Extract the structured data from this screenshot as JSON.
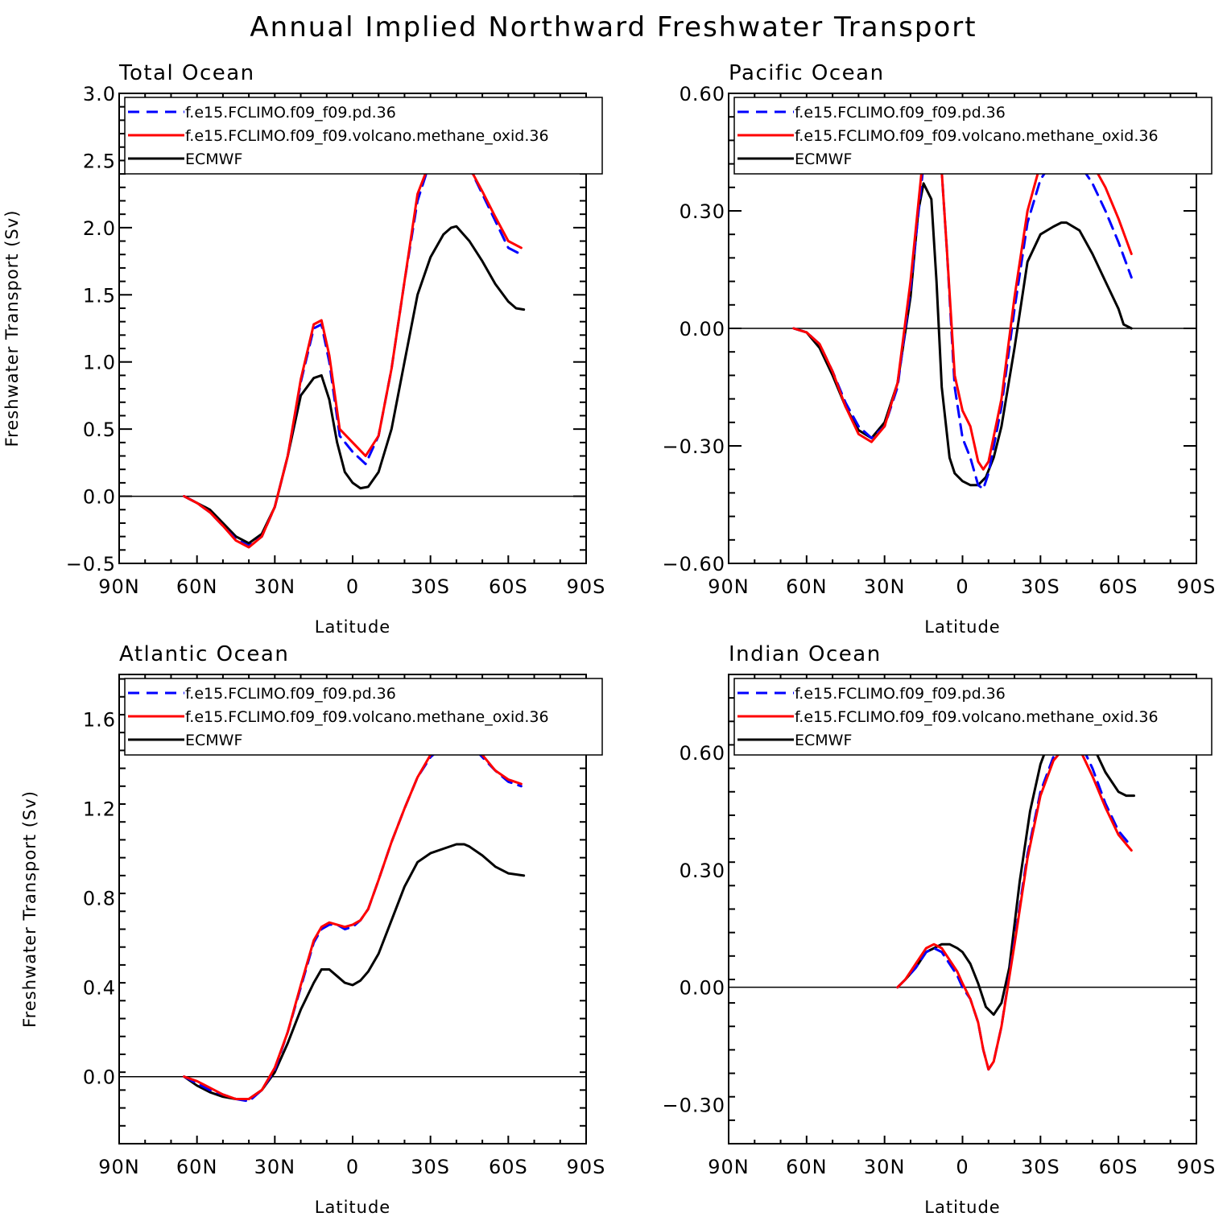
{
  "title": "Annual Implied Northward Freshwater Transport",
  "colors": {
    "pd": "#0000ff",
    "volcano": "#ff0000",
    "ecmwf": "#000000",
    "axes": "#000000",
    "background": "#ffffff"
  },
  "chart_data": [
    {
      "type": "line",
      "title": "Total Ocean",
      "xlabel": "Latitude",
      "ylabel": "Freshwater Transport (Sv)",
      "xlim": [
        90,
        -90
      ],
      "ylim": [
        -0.5,
        3.0
      ],
      "x_ticks": [
        90,
        60,
        30,
        0,
        -30,
        -60,
        -90
      ],
      "x_tick_labels": [
        "90N",
        "60N",
        "30N",
        "0",
        "30S",
        "60S",
        "90S"
      ],
      "y_ticks": [
        -0.5,
        0.0,
        0.5,
        1.0,
        1.5,
        2.0,
        2.5,
        3.0
      ],
      "y_tick_labels": [
        "-0.5",
        "0.0",
        "0.5",
        "1.0",
        "1.5",
        "2.0",
        "2.5",
        "3.0"
      ],
      "legend_position": "top",
      "series": [
        {
          "name": "f.e15.FCLIMO.f09_f09.pd.36",
          "style": "dashed",
          "color": "#0000ff",
          "x": [
            65,
            60,
            55,
            50,
            45,
            40,
            35,
            30,
            25,
            20,
            15,
            12,
            9,
            5,
            0,
            -5,
            -10,
            -15,
            -20,
            -25,
            -30,
            -35,
            -40,
            -45,
            -50,
            -55,
            -60,
            -65
          ],
          "y": [
            0.0,
            -0.05,
            -0.12,
            -0.22,
            -0.32,
            -0.37,
            -0.3,
            -0.08,
            0.3,
            0.85,
            1.25,
            1.28,
            1.0,
            0.45,
            0.33,
            0.24,
            0.45,
            0.95,
            1.6,
            2.2,
            2.5,
            2.58,
            2.58,
            2.45,
            2.25,
            2.05,
            1.85,
            1.8
          ]
        },
        {
          "name": "f.e15.FCLIMO.f09_f09.volcano.methane_oxid.36",
          "style": "solid",
          "color": "#ff0000",
          "x": [
            65,
            60,
            55,
            50,
            45,
            40,
            35,
            30,
            25,
            20,
            15,
            12,
            9,
            5,
            0,
            -5,
            -10,
            -15,
            -20,
            -25,
            -30,
            -35,
            -40,
            -45,
            -50,
            -55,
            -60,
            -65
          ],
          "y": [
            0.0,
            -0.05,
            -0.12,
            -0.22,
            -0.33,
            -0.38,
            -0.3,
            -0.08,
            0.3,
            0.87,
            1.28,
            1.31,
            1.05,
            0.5,
            0.4,
            0.3,
            0.45,
            0.95,
            1.6,
            2.25,
            2.5,
            2.6,
            2.6,
            2.45,
            2.27,
            2.08,
            1.9,
            1.85
          ]
        },
        {
          "name": "ECMWF",
          "style": "solid",
          "color": "#000000",
          "x": [
            65,
            60,
            55,
            50,
            45,
            40,
            35,
            30,
            25,
            20,
            15,
            12,
            9,
            6,
            3,
            0,
            -3,
            -6,
            -10,
            -15,
            -20,
            -25,
            -30,
            -35,
            -38,
            -40,
            -45,
            -50,
            -55,
            -60,
            -63,
            -66
          ],
          "y": [
            0.0,
            -0.05,
            -0.1,
            -0.2,
            -0.3,
            -0.35,
            -0.28,
            -0.08,
            0.3,
            0.75,
            0.88,
            0.9,
            0.72,
            0.4,
            0.18,
            0.1,
            0.06,
            0.07,
            0.18,
            0.5,
            1.0,
            1.5,
            1.78,
            1.95,
            2.0,
            2.01,
            1.9,
            1.75,
            1.58,
            1.45,
            1.4,
            1.39
          ]
        }
      ]
    },
    {
      "type": "line",
      "title": "Pacific Ocean",
      "xlabel": "Latitude",
      "ylabel": "",
      "xlim": [
        90,
        -90
      ],
      "ylim": [
        -0.6,
        0.6
      ],
      "x_ticks": [
        90,
        60,
        30,
        0,
        -30,
        -60,
        -90
      ],
      "x_tick_labels": [
        "90N",
        "60N",
        "30N",
        "0",
        "30S",
        "60S",
        "90S"
      ],
      "y_ticks": [
        -0.6,
        -0.3,
        0.0,
        0.3,
        0.6
      ],
      "y_tick_labels": [
        "-0.60",
        "-0.30",
        "0.00",
        "0.30",
        "0.60"
      ],
      "legend_position": "top",
      "series": [
        {
          "name": "f.e15.FCLIMO.f09_f09.pd.36",
          "style": "dashed",
          "color": "#0000ff",
          "x": [
            65,
            60,
            55,
            50,
            45,
            40,
            35,
            30,
            25,
            20,
            15,
            12,
            9,
            6,
            3,
            0,
            -3,
            -6,
            -8,
            -10,
            -15,
            -20,
            -25,
            -30,
            -35,
            -38,
            -40,
            -45,
            -50,
            -55,
            -60,
            -65
          ],
          "y": [
            0.0,
            -0.01,
            -0.04,
            -0.11,
            -0.19,
            -0.25,
            -0.28,
            -0.25,
            -0.15,
            0.1,
            0.42,
            0.56,
            0.5,
            0.2,
            -0.15,
            -0.28,
            -0.33,
            -0.4,
            -0.41,
            -0.37,
            -0.2,
            0.05,
            0.27,
            0.38,
            0.43,
            0.44,
            0.44,
            0.42,
            0.37,
            0.3,
            0.22,
            0.13
          ]
        },
        {
          "name": "f.e15.FCLIMO.f09_f09.volcano.methane_oxid.36",
          "style": "solid",
          "color": "#ff0000",
          "x": [
            65,
            60,
            55,
            50,
            45,
            40,
            35,
            30,
            25,
            20,
            15,
            12,
            9,
            6,
            3,
            0,
            -3,
            -6,
            -8,
            -10,
            -15,
            -20,
            -25,
            -30,
            -35,
            -38,
            -40,
            -45,
            -50,
            -55,
            -60,
            -65
          ],
          "y": [
            0.0,
            -0.01,
            -0.04,
            -0.11,
            -0.2,
            -0.27,
            -0.29,
            -0.25,
            -0.14,
            0.12,
            0.45,
            0.57,
            0.5,
            0.2,
            -0.12,
            -0.21,
            -0.25,
            -0.34,
            -0.36,
            -0.34,
            -0.18,
            0.08,
            0.3,
            0.42,
            0.47,
            0.48,
            0.48,
            0.46,
            0.42,
            0.36,
            0.28,
            0.19
          ]
        },
        {
          "name": "ECMWF",
          "style": "solid",
          "color": "#000000",
          "x": [
            65,
            60,
            55,
            50,
            45,
            40,
            35,
            30,
            25,
            20,
            17,
            15,
            12,
            10,
            8,
            5,
            3,
            0,
            -3,
            -6,
            -9,
            -12,
            -15,
            -20,
            -25,
            -30,
            -35,
            -38,
            -40,
            -45,
            -50,
            -55,
            -60,
            -62,
            -65
          ],
          "y": [
            0.0,
            -0.01,
            -0.05,
            -0.12,
            -0.2,
            -0.26,
            -0.28,
            -0.24,
            -0.14,
            0.08,
            0.3,
            0.37,
            0.33,
            0.12,
            -0.15,
            -0.33,
            -0.37,
            -0.39,
            -0.4,
            -0.4,
            -0.38,
            -0.33,
            -0.25,
            -0.05,
            0.17,
            0.24,
            0.26,
            0.27,
            0.27,
            0.25,
            0.19,
            0.12,
            0.05,
            0.01,
            0.0
          ]
        }
      ]
    },
    {
      "type": "line",
      "title": "Atlantic Ocean",
      "xlabel": "Latitude",
      "ylabel": "Freshwater Transport (Sv)",
      "xlim": [
        90,
        -90
      ],
      "ylim": [
        -0.3,
        1.8
      ],
      "x_ticks": [
        90,
        60,
        30,
        0,
        -30,
        -60,
        -90
      ],
      "x_tick_labels": [
        "90N",
        "60N",
        "30N",
        "0",
        "30S",
        "60S",
        "90S"
      ],
      "y_ticks": [
        0.0,
        0.4,
        0.8,
        1.2,
        1.6
      ],
      "y_tick_labels": [
        "0.0",
        "0.4",
        "0.8",
        "1.2",
        "1.6"
      ],
      "legend_position": "top",
      "series": [
        {
          "name": "f.e15.FCLIMO.f09_f09.pd.36",
          "style": "dashed",
          "color": "#0000ff",
          "x": [
            65,
            60,
            55,
            50,
            45,
            40,
            35,
            30,
            25,
            20,
            15,
            12,
            9,
            6,
            3,
            0,
            -3,
            -6,
            -10,
            -15,
            -20,
            -25,
            -30,
            -35,
            -40,
            -45,
            -50,
            -55,
            -60,
            -65
          ],
          "y": [
            0.0,
            -0.03,
            -0.06,
            -0.08,
            -0.1,
            -0.11,
            -0.06,
            0.03,
            0.2,
            0.4,
            0.6,
            0.66,
            0.68,
            0.68,
            0.66,
            0.67,
            0.7,
            0.75,
            0.88,
            1.05,
            1.2,
            1.34,
            1.43,
            1.48,
            1.51,
            1.49,
            1.43,
            1.37,
            1.32,
            1.3
          ]
        },
        {
          "name": "f.e15.FCLIMO.f09_f09.volcano.methane_oxid.36",
          "style": "solid",
          "color": "#ff0000",
          "x": [
            65,
            60,
            55,
            50,
            45,
            40,
            35,
            30,
            25,
            20,
            15,
            12,
            9,
            6,
            3,
            0,
            -3,
            -6,
            -10,
            -15,
            -20,
            -25,
            -30,
            -35,
            -40,
            -45,
            -50,
            -55,
            -60,
            -65
          ],
          "y": [
            0.0,
            -0.02,
            -0.05,
            -0.08,
            -0.1,
            -0.1,
            -0.06,
            0.04,
            0.2,
            0.41,
            0.61,
            0.67,
            0.69,
            0.68,
            0.67,
            0.68,
            0.7,
            0.75,
            0.88,
            1.05,
            1.2,
            1.34,
            1.44,
            1.48,
            1.51,
            1.49,
            1.44,
            1.37,
            1.33,
            1.31
          ]
        },
        {
          "name": "ECMWF",
          "style": "solid",
          "color": "#000000",
          "x": [
            65,
            60,
            55,
            50,
            45,
            40,
            35,
            30,
            25,
            20,
            15,
            12,
            9,
            6,
            3,
            0,
            -3,
            -6,
            -10,
            -15,
            -20,
            -25,
            -30,
            -35,
            -40,
            -43,
            -45,
            -50,
            -55,
            -60,
            -66
          ],
          "y": [
            0.0,
            -0.04,
            -0.07,
            -0.09,
            -0.1,
            -0.1,
            -0.06,
            0.02,
            0.15,
            0.3,
            0.42,
            0.48,
            0.48,
            0.45,
            0.42,
            0.41,
            0.43,
            0.47,
            0.55,
            0.7,
            0.85,
            0.96,
            1.0,
            1.02,
            1.04,
            1.04,
            1.03,
            0.99,
            0.94,
            0.91,
            0.9
          ]
        }
      ]
    },
    {
      "type": "line",
      "title": "Indian Ocean",
      "xlabel": "Latitude",
      "ylabel": "",
      "xlim": [
        90,
        -90
      ],
      "ylim": [
        -0.4,
        0.8
      ],
      "x_ticks": [
        90,
        60,
        30,
        0,
        -30,
        -60,
        -90
      ],
      "x_tick_labels": [
        "90N",
        "60N",
        "30N",
        "0",
        "30S",
        "60S",
        "90S"
      ],
      "y_ticks": [
        -0.3,
        0.0,
        0.3,
        0.6
      ],
      "y_tick_labels": [
        "-0.30",
        "0.00",
        "0.30",
        "0.60"
      ],
      "legend_position": "top",
      "series": [
        {
          "name": "f.e15.FCLIMO.f09_f09.pd.36",
          "style": "dashed",
          "color": "#0000ff",
          "x": [
            25,
            22,
            18,
            14,
            11,
            8,
            5,
            2,
            0,
            -3,
            -6,
            -8,
            -10,
            -12,
            -15,
            -20,
            -25,
            -30,
            -35,
            -40,
            -42,
            -45,
            -50,
            -55,
            -60,
            -65
          ],
          "y": [
            0.0,
            0.02,
            0.05,
            0.09,
            0.1,
            0.09,
            0.06,
            0.03,
            0.0,
            -0.03,
            -0.09,
            -0.16,
            -0.21,
            -0.19,
            -0.1,
            0.12,
            0.34,
            0.5,
            0.59,
            0.63,
            0.64,
            0.63,
            0.56,
            0.47,
            0.4,
            0.36
          ]
        },
        {
          "name": "f.e15.FCLIMO.f09_f09.volcano.methane_oxid.36",
          "style": "solid",
          "color": "#ff0000",
          "x": [
            25,
            22,
            18,
            14,
            11,
            8,
            5,
            2,
            0,
            -3,
            -6,
            -8,
            -10,
            -12,
            -15,
            -20,
            -25,
            -30,
            -35,
            -40,
            -42,
            -45,
            -50,
            -55,
            -60,
            -65
          ],
          "y": [
            0.0,
            0.02,
            0.06,
            0.1,
            0.11,
            0.1,
            0.07,
            0.04,
            0.01,
            -0.03,
            -0.09,
            -0.16,
            -0.21,
            -0.19,
            -0.1,
            0.11,
            0.33,
            0.49,
            0.58,
            0.62,
            0.62,
            0.61,
            0.54,
            0.46,
            0.39,
            0.35
          ]
        },
        {
          "name": "ECMWF",
          "style": "solid",
          "color": "#000000",
          "x": [
            25,
            22,
            18,
            14,
            11,
            8,
            5,
            2,
            0,
            -3,
            -6,
            -9,
            -12,
            -15,
            -18,
            -22,
            -26,
            -30,
            -35,
            -40,
            -42,
            -45,
            -50,
            -55,
            -60,
            -63,
            -66
          ],
          "y": [
            0.0,
            0.02,
            0.05,
            0.09,
            0.1,
            0.11,
            0.11,
            0.1,
            0.09,
            0.06,
            0.01,
            -0.05,
            -0.07,
            -0.04,
            0.05,
            0.27,
            0.45,
            0.57,
            0.66,
            0.7,
            0.7,
            0.68,
            0.62,
            0.55,
            0.5,
            0.49,
            0.49
          ]
        }
      ]
    }
  ]
}
